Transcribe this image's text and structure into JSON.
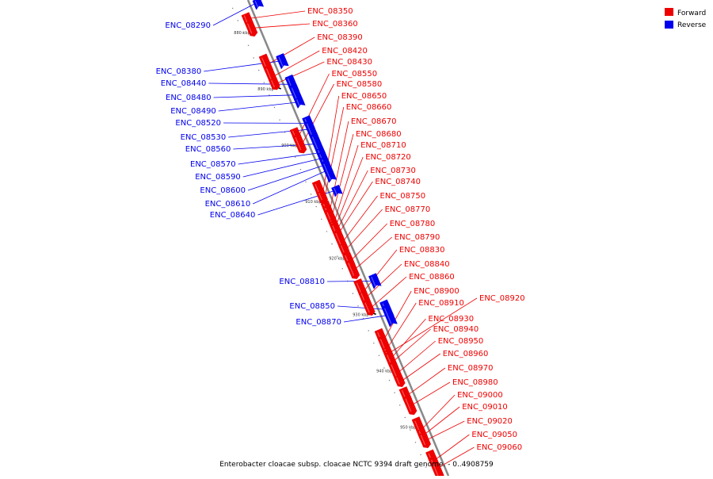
{
  "caption": "Enterobacter cloacae subsp. cloacae NCTC 9394 draft genome. - 0..4908759",
  "legend": [
    {
      "label": "Forward",
      "color": "#ee0000"
    },
    {
      "label": "Reverse",
      "color": "#0000ee"
    }
  ],
  "axis": {
    "start_kbp": 875,
    "end_kbp": 957,
    "ticks": [
      "880 kbp",
      "890 kbp",
      "900 kbp",
      "910 kbp",
      "920 kbp",
      "930 kbp",
      "940 kbp",
      "950 kbp"
    ],
    "tick_values": [
      880,
      890,
      900,
      910,
      920,
      930,
      940,
      950
    ]
  },
  "colors": {
    "forward": "#ee0000",
    "reverse": "#0000ee",
    "backbone": "#888888"
  },
  "reverse_genes": [
    {
      "label": "ENC_08290",
      "pos": 875.3
    },
    {
      "label": "ENC_08380",
      "pos": 885.5
    },
    {
      "label": "ENC_08440",
      "pos": 889.6
    },
    {
      "label": "ENC_08480",
      "pos": 891.5
    },
    {
      "label": "ENC_08490",
      "pos": 892.8
    },
    {
      "label": "ENC_08520",
      "pos": 896.5
    },
    {
      "label": "ENC_08530",
      "pos": 897.6
    },
    {
      "label": "ENC_08560",
      "pos": 900.2
    },
    {
      "label": "ENC_08570",
      "pos": 901.8
    },
    {
      "label": "ENC_08590",
      "pos": 902.8
    },
    {
      "label": "ENC_08600",
      "pos": 904.0
    },
    {
      "label": "ENC_08610",
      "pos": 905.0
    },
    {
      "label": "ENC_08640",
      "pos": 908.5
    },
    {
      "label": "ENC_08810",
      "pos": 924.5
    },
    {
      "label": "ENC_08850",
      "pos": 929.5
    },
    {
      "label": "ENC_08870",
      "pos": 930.6
    }
  ],
  "forward_genes": [
    {
      "label": "ENC_08350",
      "pos": 876.8
    },
    {
      "label": "ENC_08360",
      "pos": 878.5
    },
    {
      "label": "ENC_08390",
      "pos": 884.8
    },
    {
      "label": "ENC_08420",
      "pos": 887.0
    },
    {
      "label": "ENC_08430",
      "pos": 888.3
    },
    {
      "label": "ENC_08550",
      "pos": 897.5
    },
    {
      "label": "ENC_08580",
      "pos": 898.9
    },
    {
      "label": "ENC_08650",
      "pos": 907.5
    },
    {
      "label": "ENC_08660",
      "pos": 908.3
    },
    {
      "label": "ENC_08670",
      "pos": 910.5
    },
    {
      "label": "ENC_08680",
      "pos": 911.5
    },
    {
      "label": "ENC_08710",
      "pos": 912.5
    },
    {
      "label": "ENC_08720",
      "pos": 913.2
    },
    {
      "label": "ENC_08730",
      "pos": 913.9
    },
    {
      "label": "ENC_08740",
      "pos": 914.6
    },
    {
      "label": "ENC_08750",
      "pos": 916.2
    },
    {
      "label": "ENC_08770",
      "pos": 917.6
    },
    {
      "label": "ENC_08780",
      "pos": 919.6
    },
    {
      "label": "ENC_08790",
      "pos": 921.2
    },
    {
      "label": "ENC_08830",
      "pos": 925.0
    },
    {
      "label": "ENC_08840",
      "pos": 926.1
    },
    {
      "label": "ENC_08860",
      "pos": 928.0
    },
    {
      "label": "ENC_08900",
      "pos": 933.5
    },
    {
      "label": "ENC_08910",
      "pos": 935.0
    },
    {
      "label": "ENC_08920",
      "pos": 936.0
    },
    {
      "label": "ENC_08930",
      "pos": 936.8
    },
    {
      "label": "ENC_08940",
      "pos": 937.5
    },
    {
      "label": "ENC_08950",
      "pos": 939.5
    },
    {
      "label": "ENC_08960",
      "pos": 941.0
    },
    {
      "label": "ENC_08970",
      "pos": 943.5
    },
    {
      "label": "ENC_08980",
      "pos": 945.3
    },
    {
      "label": "ENC_09000",
      "pos": 949.5
    },
    {
      "label": "ENC_09010",
      "pos": 950.5
    },
    {
      "label": "ENC_09020",
      "pos": 951.5
    },
    {
      "label": "ENC_09050",
      "pos": 955.0
    },
    {
      "label": "ENC_09060",
      "pos": 956.4
    }
  ]
}
